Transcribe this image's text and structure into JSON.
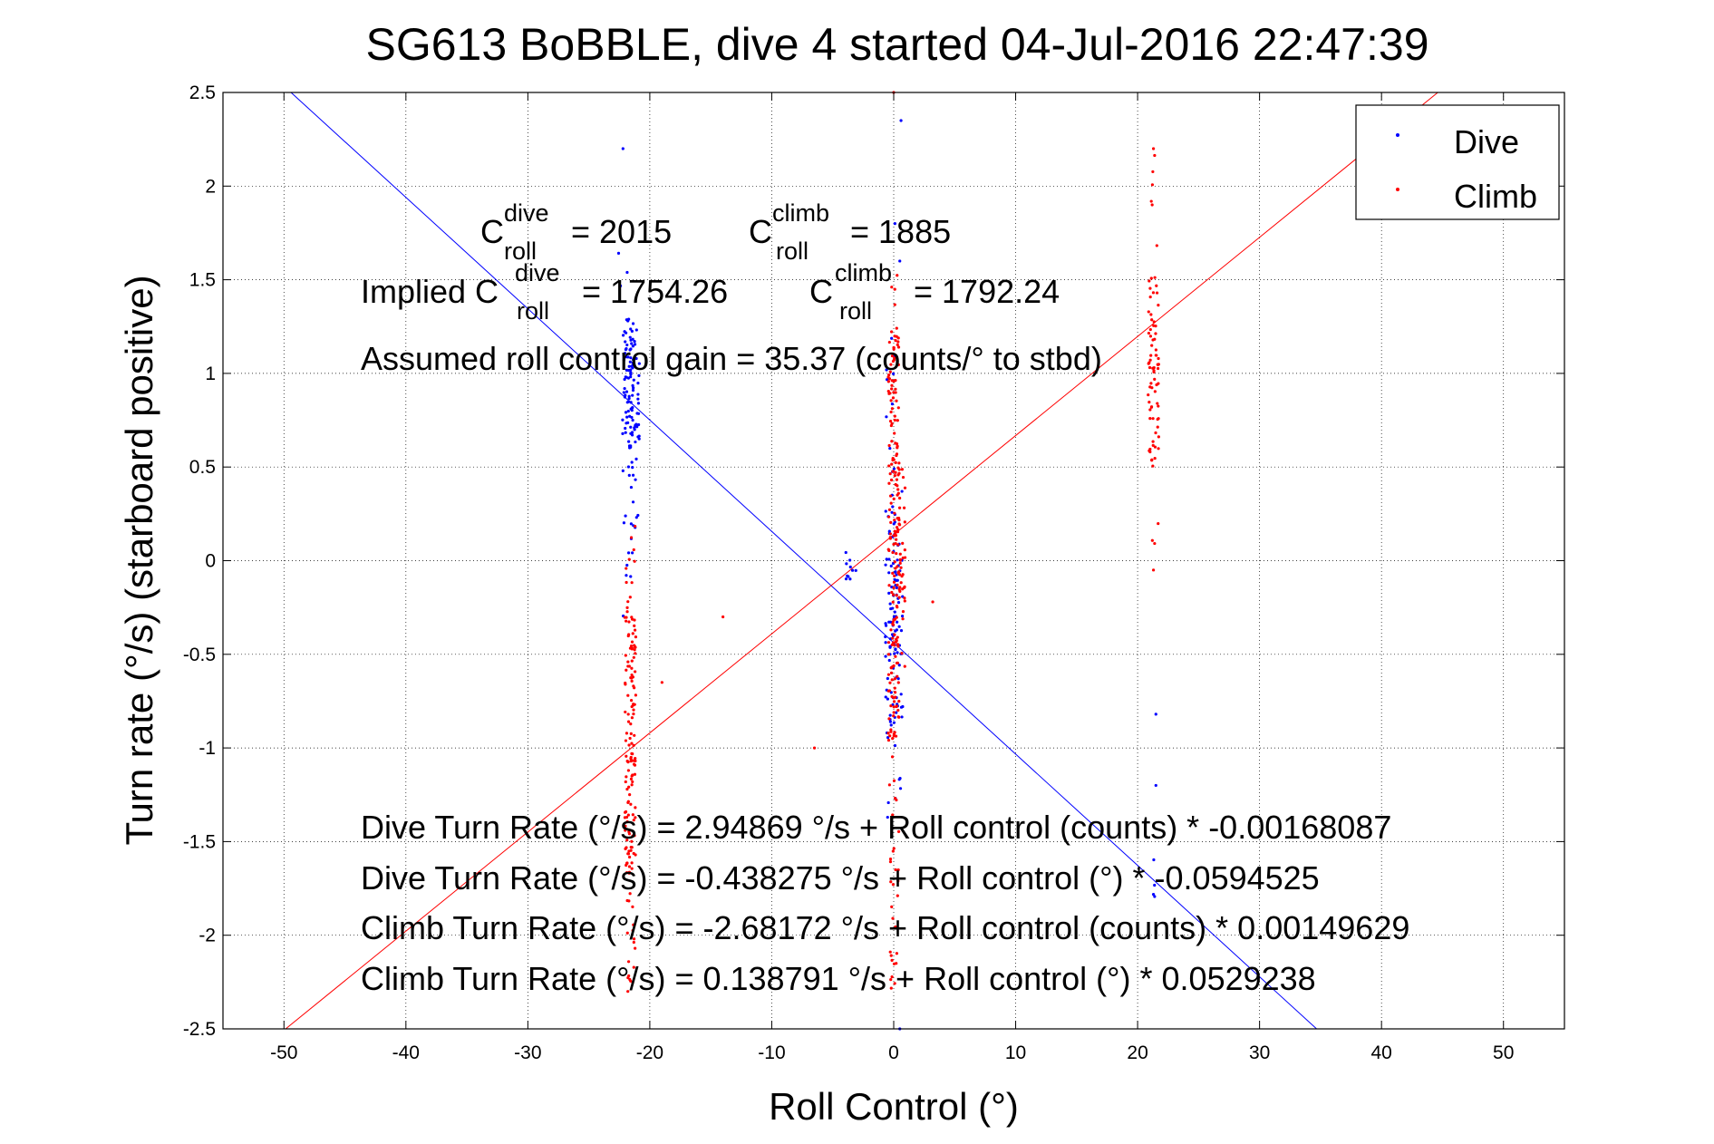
{
  "chart_data": {
    "type": "scatter",
    "title": "SG613 BoBBLE, dive 4 started 04-Jul-2016 22:47:39",
    "xlabel": "Roll Control (°)",
    "ylabel": "Turn rate (°/s)  (starboard positive)",
    "xlim": [
      -55,
      55
    ],
    "ylim": [
      -2.5,
      2.5
    ],
    "xticks": [
      -50,
      -40,
      -30,
      -20,
      -10,
      0,
      10,
      20,
      30,
      40,
      50
    ],
    "yticks": [
      -2.5,
      -2,
      -1.5,
      -1,
      -0.5,
      0,
      0.5,
      1,
      1.5,
      2,
      2.5
    ],
    "grid": true,
    "legend_position": "top-right",
    "series": [
      {
        "name": "Dive",
        "color": "#0000ff",
        "marker": "dot",
        "clusters": [
          {
            "x": -21.8,
            "y_min": -0.3,
            "y_max": 1.3,
            "n": 70,
            "dense": [
              0.65,
              1.3
            ]
          },
          {
            "x": -21.3,
            "y_min": 0.0,
            "y_max": 1.25,
            "n": 60,
            "dense": [
              0.6,
              1.25
            ]
          },
          {
            "x": -22.2,
            "y_min": 1.45,
            "y_max": 1.65,
            "n": 3
          },
          {
            "x": -3.5,
            "y_min": -0.1,
            "y_max": 0.05,
            "n": 10
          },
          {
            "x": -0.3,
            "y_min": -1.4,
            "y_max": 1.2,
            "n": 70,
            "dense": [
              -1.0,
              0.3
            ]
          },
          {
            "x": 0.3,
            "y_min": -1.3,
            "y_max": 0.5,
            "n": 50,
            "dense": [
              -0.9,
              0.1
            ]
          },
          {
            "x": 21.5,
            "y_min": -1.9,
            "y_max": -0.8,
            "n": 4
          }
        ],
        "points": [
          [
            -22.2,
            2.2
          ],
          [
            0.6,
            2.35
          ],
          [
            0.1,
            1.8
          ],
          [
            0.5,
            1.6
          ],
          [
            21.5,
            -0.82
          ],
          [
            21.5,
            -1.2
          ],
          [
            -0.5,
            -1.37
          ],
          [
            0.5,
            -2.5
          ]
        ],
        "fit_line": {
          "intercept": -0.438275,
          "slope": -0.0594525
        }
      },
      {
        "name": "Climb",
        "color": "#ff0000",
        "marker": "dot",
        "clusters": [
          {
            "x": -21.6,
            "y_min": -2.3,
            "y_max": 0.2,
            "n": 160,
            "dense": [
              -1.7,
              -0.3
            ]
          },
          {
            "x": 0.0,
            "y_min": -2.3,
            "y_max": 1.6,
            "n": 200,
            "dense": [
              -1.0,
              1.2
            ]
          },
          {
            "x": 0.5,
            "y_min": -0.6,
            "y_max": 0.8,
            "n": 60,
            "dense": [
              -0.2,
              0.5
            ]
          },
          {
            "x": 21.3,
            "y_min": -0.05,
            "y_max": 2.2,
            "n": 80,
            "dense": [
              0.5,
              1.5
            ]
          }
        ],
        "points": [
          [
            -14,
            -0.3
          ],
          [
            -19,
            -0.65
          ],
          [
            -6.5,
            -1.0
          ],
          [
            3.2,
            -0.22
          ],
          [
            0.0,
            2.5
          ],
          [
            21.3,
            2.2
          ],
          [
            21.3,
            -0.05
          ],
          [
            -21.8,
            -2.3
          ]
        ],
        "fit_line": {
          "intercept": 0.138791,
          "slope": 0.0529238
        }
      }
    ]
  },
  "annotations": {
    "c_dive_base": "C",
    "c_dive_sup": "dive",
    "c_dive_sub": "roll",
    "c_dive_value": "= 2015",
    "c_climb_base": "C",
    "c_climb_sup": "climb",
    "c_climb_sub": "roll",
    "c_climb_value": "= 1885",
    "implied_prefix": "Implied C",
    "implied_dive_sup": "dive",
    "implied_dive_sub": "roll",
    "implied_dive_value": "= 1754.26",
    "implied_climb_base": "C",
    "implied_climb_sup": "climb",
    "implied_climb_sub": "roll",
    "implied_climb_value": "= 1792.24",
    "gain_text": "Assumed roll control gain = 35.37 (counts/° to stbd)",
    "fit_lines": [
      "Dive Turn Rate (°/s) = 2.94869 °/s + Roll control (counts) * -0.00168087",
      "Dive Turn Rate (°/s) = -0.438275 °/s + Roll control (°) * -0.0594525",
      "Climb Turn Rate (°/s) = -2.68172 °/s + Roll control (counts) * 0.00149629",
      "Climb Turn Rate (°/s) = 0.138791 °/s + Roll control (°) * 0.0529238"
    ]
  }
}
